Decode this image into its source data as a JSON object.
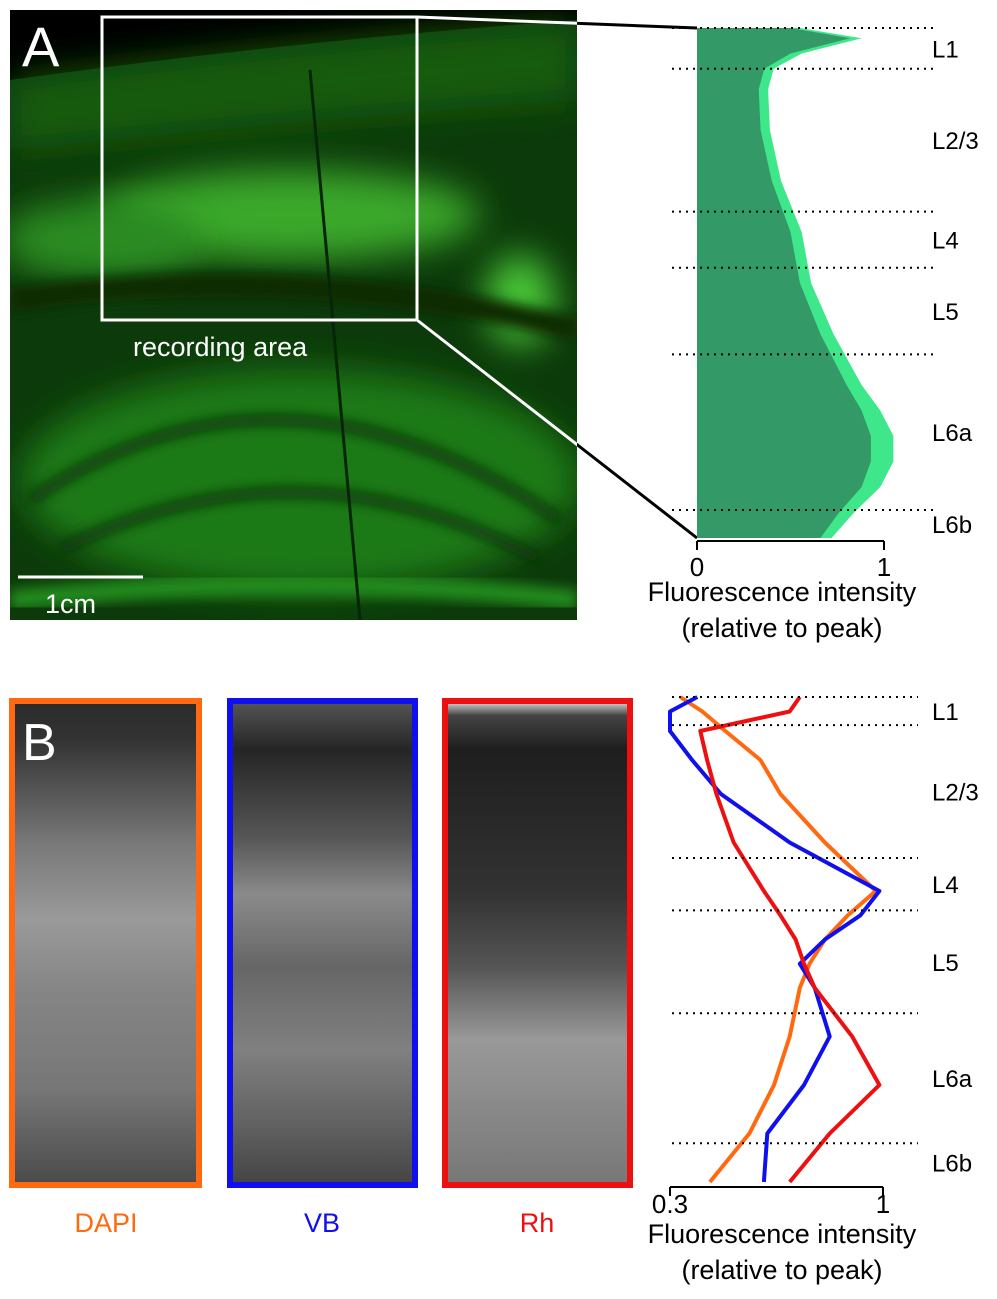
{
  "panel_a": {
    "label": "A",
    "annotation": "recording area",
    "scale_bar": "1cm"
  },
  "panel_b": {
    "label": "B"
  },
  "chart_data": [
    {
      "type": "area",
      "xlabel": [
        "Fluorescence intensity",
        "(relative to peak)"
      ],
      "xlim": [
        0,
        1
      ],
      "xticks": [
        0,
        1
      ],
      "ylim": [
        0,
        1
      ],
      "depth": [
        0,
        0.02,
        0.05,
        0.08,
        0.12,
        0.2,
        0.3,
        0.4,
        0.5,
        0.6,
        0.7,
        0.75,
        0.8,
        0.85,
        0.9,
        0.95,
        1.0
      ],
      "values": [
        0.5,
        0.82,
        0.5,
        0.36,
        0.33,
        0.34,
        0.4,
        0.5,
        0.55,
        0.66,
        0.8,
        0.88,
        0.93,
        0.93,
        0.88,
        0.76,
        0.66
      ],
      "errors": [
        0.05,
        0.06,
        0.06,
        0.05,
        0.05,
        0.05,
        0.05,
        0.06,
        0.06,
        0.07,
        0.08,
        0.1,
        0.12,
        0.12,
        0.1,
        0.08,
        0.06
      ],
      "color": "#339966",
      "error_color": "#3ee88a",
      "layers": [
        "L1",
        "L2/3",
        "L4",
        "L5",
        "L6a",
        "L6b"
      ],
      "layer_boundaries": [
        0,
        0.08,
        0.36,
        0.47,
        0.64,
        0.945
      ]
    },
    {
      "type": "line",
      "xlabel": [
        "Fluorescence intensity",
        "(relative to peak)"
      ],
      "xscale": "log",
      "xlim": [
        0.3,
        1
      ],
      "xticks": [
        0.3,
        1
      ],
      "ylim": [
        0,
        1
      ],
      "depth": [
        0,
        0.03,
        0.07,
        0.13,
        0.2,
        0.3,
        0.4,
        0.45,
        0.5,
        0.55,
        0.6,
        0.7,
        0.8,
        0.9,
        1.0
      ],
      "series": [
        {
          "name": "DAPI",
          "color": "#ff6a10",
          "values": [
            0.318,
            0.36,
            0.41,
            0.5,
            0.56,
            0.72,
            0.96,
            0.82,
            0.72,
            0.66,
            0.625,
            0.59,
            0.54,
            0.47,
            0.376
          ]
        },
        {
          "name": "VB",
          "color": "#1010ee",
          "values": [
            0.35,
            0.3,
            0.3,
            0.34,
            0.4,
            0.59,
            0.98,
            0.88,
            0.72,
            0.625,
            0.68,
            0.74,
            0.64,
            0.52,
            0.51
          ]
        },
        {
          "name": "Rh",
          "color": "#ee1010",
          "values": [
            0.625,
            0.59,
            0.356,
            0.37,
            0.39,
            0.43,
            0.51,
            0.56,
            0.61,
            0.64,
            0.68,
            0.84,
            0.98,
            0.74,
            0.59
          ]
        }
      ],
      "layers": [
        "L1",
        "L2/3",
        "L4",
        "L5",
        "L6a",
        "L6b"
      ],
      "layer_boundaries": [
        0,
        0.058,
        0.332,
        0.44,
        0.652,
        0.92
      ]
    }
  ]
}
